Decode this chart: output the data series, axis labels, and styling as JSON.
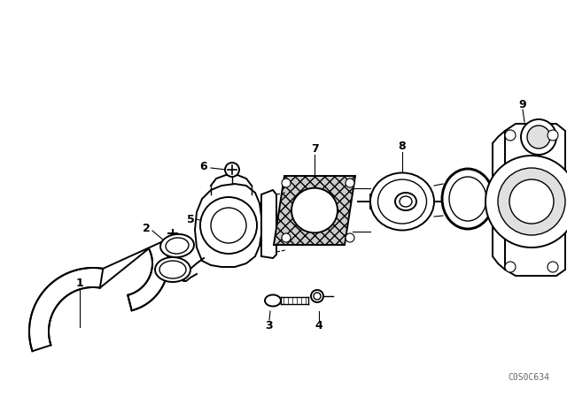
{
  "background_color": "#ffffff",
  "line_color": "#000000",
  "watermark": "C0S0C634",
  "figsize": [
    6.4,
    4.48
  ],
  "dpi": 100
}
